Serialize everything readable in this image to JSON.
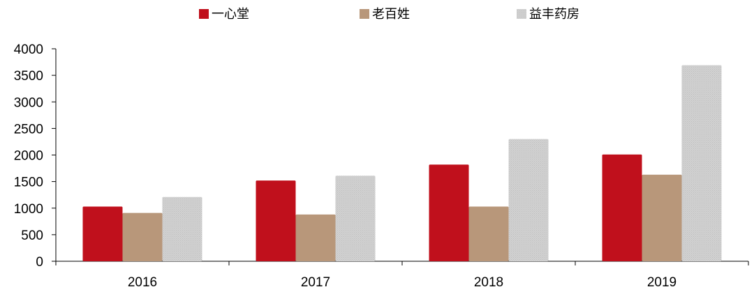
{
  "chart_data": {
    "type": "bar",
    "title": "",
    "xlabel": "",
    "ylabel": "",
    "categories": [
      "2016",
      "2017",
      "2018",
      "2019"
    ],
    "series": [
      {
        "name": "一心堂",
        "color": "#c0101c",
        "values": [
          1030,
          1520,
          1820,
          2010
        ]
      },
      {
        "name": "老百姓",
        "color": "#b8977a",
        "values": [
          910,
          880,
          1030,
          1630
        ]
      },
      {
        "name": "益丰药房",
        "color": "#cccccc",
        "values": [
          1210,
          1610,
          2300,
          3690
        ]
      }
    ],
    "ylim": [
      0,
      4000
    ],
    "yticks": [
      0,
      500,
      1000,
      1500,
      2000,
      2500,
      3000,
      3500,
      4000
    ],
    "grid": false,
    "legend_position": "top-center"
  }
}
